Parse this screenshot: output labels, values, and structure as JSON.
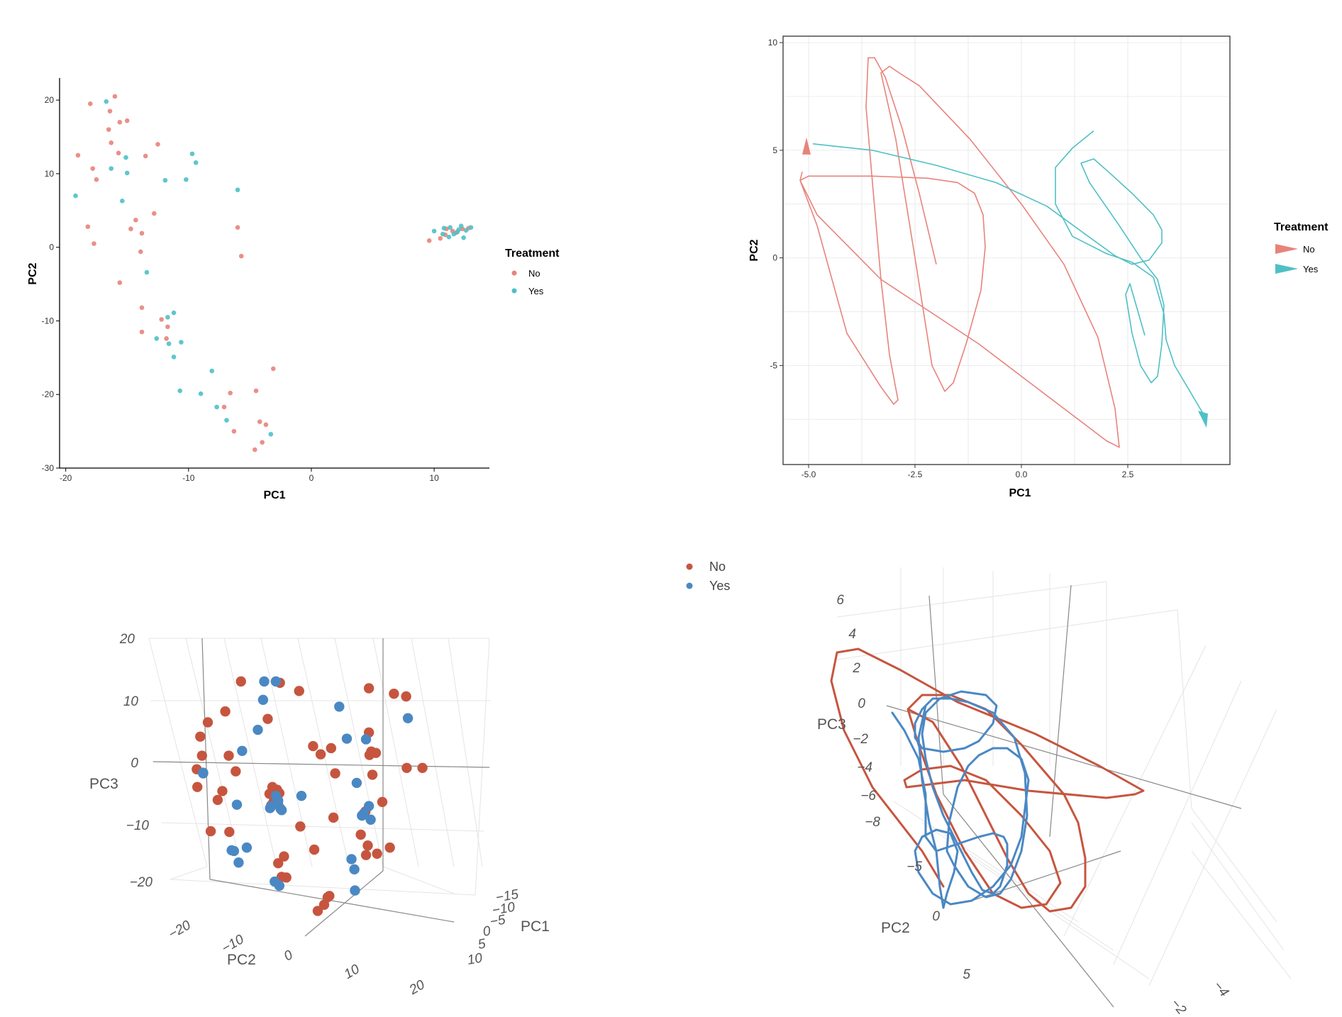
{
  "colors": {
    "no": "#E8837B",
    "yes": "#4FC0C5",
    "no3d": "#C6553F",
    "yes3d": "#4A88C4"
  },
  "panel1": {
    "legend": {
      "title": "Treatment",
      "items": [
        "No",
        "Yes"
      ]
    },
    "chart_data": {
      "type": "scatter",
      "xlabel": "PC1",
      "ylabel": "PC2",
      "xlim": [
        -20.5,
        14.5
      ],
      "ylim": [
        -30,
        23
      ],
      "xticks": [
        "-20",
        "-10",
        "0",
        "10"
      ],
      "yticks": [
        "20",
        "10",
        "0",
        "-10",
        "-20",
        "-30"
      ],
      "series": [
        {
          "name": "No",
          "points": [
            [
              -16,
              20.5
            ],
            [
              -18,
              19.5
            ],
            [
              -16.4,
              18.5
            ],
            [
              -15.6,
              17
            ],
            [
              -15,
              17.2
            ],
            [
              -16.5,
              16
            ],
            [
              -16.3,
              14.2
            ],
            [
              -12.5,
              14
            ],
            [
              -15.7,
              12.8
            ],
            [
              -13.5,
              12.4
            ],
            [
              -19,
              12.5
            ],
            [
              -17.8,
              10.7
            ],
            [
              -17.5,
              9.2
            ],
            [
              -12.8,
              4.6
            ],
            [
              -14.3,
              3.7
            ],
            [
              -13.8,
              1.9
            ],
            [
              -18.2,
              2.8
            ],
            [
              -14.7,
              2.5
            ],
            [
              -6,
              2.7
            ],
            [
              -17.7,
              0.5
            ],
            [
              -13.9,
              -0.6
            ],
            [
              -5.7,
              -1.2
            ],
            [
              -15.6,
              -4.8
            ],
            [
              -13.8,
              -8.2
            ],
            [
              -12.2,
              -9.8
            ],
            [
              -11.7,
              -10.8
            ],
            [
              -13.8,
              -11.5
            ],
            [
              -11.8,
              -12.4
            ],
            [
              -3.1,
              -16.5
            ],
            [
              -6.6,
              -19.8
            ],
            [
              -4.5,
              -19.5
            ],
            [
              -7.1,
              -21.7
            ],
            [
              -4.2,
              -23.7
            ],
            [
              -3.7,
              -24.1
            ],
            [
              -6.3,
              -25
            ],
            [
              -4,
              -26.5
            ],
            [
              -4.6,
              -27.5
            ],
            [
              10.5,
              1.2
            ],
            [
              9.6,
              0.9
            ],
            [
              11,
              2.5
            ],
            [
              11.8,
              2
            ],
            [
              12.3,
              2.5
            ],
            [
              12.8,
              2.6
            ],
            [
              10.9,
              1.7
            ],
            [
              11.5,
              2.2
            ]
          ]
        },
        {
          "name": "Yes",
          "points": [
            [
              -16.7,
              19.8
            ],
            [
              -9.7,
              12.7
            ],
            [
              -15.1,
              12.2
            ],
            [
              -9.4,
              11.5
            ],
            [
              -16.3,
              10.7
            ],
            [
              -15,
              10.1
            ],
            [
              -11.9,
              9.1
            ],
            [
              -10.2,
              9.2
            ],
            [
              -19.2,
              7
            ],
            [
              -6,
              7.8
            ],
            [
              -15.4,
              6.3
            ],
            [
              -13.4,
              -3.4
            ],
            [
              -11.7,
              -9.5
            ],
            [
              -11.2,
              -8.9
            ],
            [
              -12.6,
              -12.4
            ],
            [
              -11.6,
              -13.1
            ],
            [
              -10.6,
              -12.9
            ],
            [
              -11.2,
              -14.9
            ],
            [
              -8.1,
              -16.8
            ],
            [
              -10.7,
              -19.5
            ],
            [
              -9,
              -19.9
            ],
            [
              -7.7,
              -21.7
            ],
            [
              -6.9,
              -23.5
            ],
            [
              -3.3,
              -25.4
            ],
            [
              10,
              2.2
            ],
            [
              10.8,
              2.6
            ],
            [
              11.2,
              1.4
            ],
            [
              11.6,
              1.8
            ],
            [
              12,
              2.4
            ],
            [
              12.2,
              2.9
            ],
            [
              12.4,
              1.3
            ],
            [
              11.3,
              2.7
            ],
            [
              13,
              2.7
            ],
            [
              10.7,
              1.8
            ],
            [
              11.9,
              2.1
            ],
            [
              12.6,
              2.3
            ]
          ]
        }
      ]
    }
  },
  "panel2": {
    "legend": {
      "title": "Treatment",
      "items": [
        "No",
        "Yes"
      ]
    },
    "chart_data": {
      "type": "line",
      "xlabel": "PC1",
      "ylabel": "PC2",
      "xlim": [
        -5.6,
        4.9
      ],
      "ylim": [
        -9.6,
        10.3
      ],
      "xticks": [
        "-5.0",
        "-2.5",
        "0.0",
        "2.5"
      ],
      "yticks": [
        "10",
        "5",
        "0",
        "-5"
      ],
      "series": [
        {
          "name": "No",
          "path": [
            [
              -2,
              -0.3
            ],
            [
              -2.4,
              3
            ],
            [
              -2.8,
              6
            ],
            [
              -3.2,
              8.4
            ],
            [
              -3.45,
              9.3
            ],
            [
              -3.6,
              9.3
            ],
            [
              -3.65,
              7
            ],
            [
              -3.5,
              3.5
            ],
            [
              -3.3,
              -1
            ],
            [
              -3.1,
              -4.5
            ],
            [
              -2.9,
              -6.6
            ],
            [
              -3,
              -6.8
            ],
            [
              -3.3,
              -6
            ],
            [
              -4.1,
              -3.5
            ],
            [
              -4.8,
              1.5
            ],
            [
              -5.2,
              3.6
            ],
            [
              -5,
              3.8
            ],
            [
              -3.5,
              3.8
            ],
            [
              -2.2,
              3.7
            ],
            [
              -1.5,
              3.5
            ],
            [
              -1.1,
              3
            ],
            [
              -0.9,
              2
            ],
            [
              -0.85,
              0.5
            ],
            [
              -0.95,
              -1.5
            ],
            [
              -1.3,
              -4
            ],
            [
              -1.6,
              -5.8
            ],
            [
              -1.8,
              -6.2
            ],
            [
              -2.1,
              -5
            ],
            [
              -2.5,
              0
            ],
            [
              -2.95,
              5.5
            ],
            [
              -3.3,
              8.6
            ],
            [
              -3.1,
              8.9
            ],
            [
              -2.8,
              8.5
            ],
            [
              -2.4,
              8
            ],
            [
              -1.2,
              5.5
            ],
            [
              0,
              2.5
            ],
            [
              1,
              -0.3
            ],
            [
              1.8,
              -3.7
            ],
            [
              2.2,
              -7
            ],
            [
              2.3,
              -8.8
            ],
            [
              2,
              -8.5
            ],
            [
              1,
              -7
            ],
            [
              -1,
              -4
            ],
            [
              -3.3,
              -1
            ],
            [
              -4.8,
              2
            ],
            [
              -5.2,
              3.6
            ],
            [
              -5.15,
              4
            ]
          ],
          "arrow": [
            -5.05,
            5
          ]
        },
        {
          "name": "Yes",
          "path": [
            [
              -4.9,
              5.3
            ],
            [
              -3.5,
              5
            ],
            [
              -2,
              4.3
            ],
            [
              -0.6,
              3.5
            ],
            [
              0.6,
              2.4
            ],
            [
              1.5,
              1.1
            ],
            [
              2.2,
              0.1
            ],
            [
              2.6,
              -0.3
            ],
            [
              3,
              -0.1
            ],
            [
              3.3,
              0.7
            ],
            [
              3.3,
              1.3
            ],
            [
              3.1,
              2
            ],
            [
              2.6,
              3
            ],
            [
              2.1,
              3.9
            ],
            [
              1.7,
              4.6
            ],
            [
              1.4,
              4.4
            ],
            [
              1.6,
              3.5
            ],
            [
              2.3,
              1.5
            ],
            [
              2.8,
              0
            ],
            [
              3.2,
              -1
            ],
            [
              3.35,
              -2.2
            ],
            [
              3.3,
              -4
            ],
            [
              3.2,
              -5.5
            ],
            [
              3.05,
              -5.8
            ],
            [
              2.8,
              -5
            ],
            [
              2.6,
              -3.5
            ],
            [
              2.45,
              -1.7
            ],
            [
              2.55,
              -1.2
            ],
            [
              2.9,
              -3.6
            ]
          ],
          "arrow": [
            4.35,
            -7.5
          ]
        },
        {
          "name": "Yes",
          "path": [
            [
              1.7,
              5.9
            ],
            [
              1.2,
              5.1
            ],
            [
              0.8,
              4.2
            ],
            [
              0.8,
              2.5
            ],
            [
              1.2,
              1
            ],
            [
              2,
              0.2
            ],
            [
              2.6,
              -0.2
            ],
            [
              3.1,
              -0.9
            ],
            [
              3.35,
              -2.6
            ],
            [
              3.4,
              -3.8
            ],
            [
              3.6,
              -5
            ],
            [
              4.35,
              -7.5
            ]
          ]
        }
      ]
    }
  },
  "panel3": {
    "legend": {
      "items": [
        "No",
        "Yes"
      ]
    },
    "axis_labels": {
      "x": "PC1",
      "y": "PC2",
      "z": "PC3"
    },
    "chart_data": {
      "type": "scatter",
      "dimension": "3d",
      "xlabel": "PC1",
      "ylabel": "PC2",
      "zlabel": "PC3",
      "zticks": [
        "20",
        "10",
        "0",
        "−10",
        "−20"
      ],
      "yticks": [
        "−20",
        "−10",
        "0",
        "10",
        "20"
      ],
      "xticks": [
        "−15",
        "−10",
        "−5",
        "0",
        "5",
        "10"
      ],
      "series": [
        {
          "name": "No",
          "count": 56
        },
        {
          "name": "Yes",
          "count": 36
        }
      ]
    }
  },
  "panel4": {
    "axis_labels": {
      "y": "PC2",
      "z": "PC3"
    },
    "chart_data": {
      "type": "line",
      "dimension": "3d",
      "ylabel": "PC2",
      "zlabel": "PC3",
      "zticks": [
        "6",
        "4",
        "2",
        "0",
        "−2",
        "−4",
        "−6",
        "−8"
      ],
      "yticks": [
        "−5",
        "0",
        "5"
      ],
      "xticks": [
        "−4",
        "−2"
      ],
      "series": [
        {
          "name": "No",
          "style": "thick line"
        },
        {
          "name": "Yes",
          "style": "thick line"
        }
      ]
    }
  }
}
